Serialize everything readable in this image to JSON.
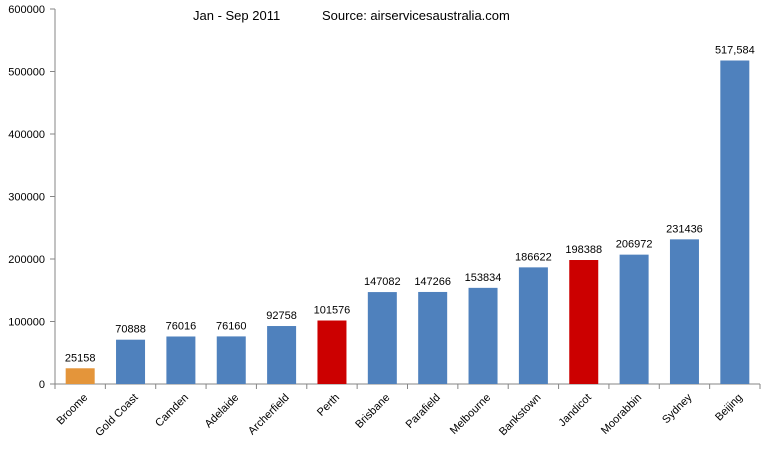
{
  "chart_data": {
    "type": "bar",
    "title": "Jan - Sep 2011",
    "subtitle": "Source: airservicesaustralia.com",
    "xlabel": "",
    "ylabel": "",
    "ylim": [
      0,
      600000
    ],
    "yticks": [
      0,
      100000,
      200000,
      300000,
      400000,
      500000,
      600000
    ],
    "ytick_labels": [
      "0",
      "100000",
      "200000",
      "300000",
      "400000",
      "500000",
      "600000"
    ],
    "grid": false,
    "legend": "none",
    "categories": [
      "Broome",
      "Gold Coast",
      "Camden",
      "Adelaide",
      "Archerfield",
      "Perth",
      "Brisbane",
      "Parafield",
      "Melbourne",
      "Bankstown",
      "Jandicot",
      "Moorabbin",
      "Sydney",
      "Beijing"
    ],
    "values": [
      25158,
      70888,
      76016,
      76160,
      92758,
      101576,
      147082,
      147266,
      153834,
      186622,
      198388,
      206972,
      231436,
      517584
    ],
    "value_labels": [
      "25158",
      "70888",
      "76016",
      "76160",
      "92758",
      "101576",
      "147082",
      "147266",
      "153834",
      "186622",
      "198388",
      "206972",
      "231436",
      "517,584"
    ],
    "colors": [
      "#E4953A",
      "#4F81BD",
      "#4F81BD",
      "#4F81BD",
      "#4F81BD",
      "#CC0000",
      "#4F81BD",
      "#4F81BD",
      "#4F81BD",
      "#4F81BD",
      "#CC0000",
      "#4F81BD",
      "#4F81BD",
      "#4F81BD"
    ],
    "axis_color": "#868686"
  }
}
